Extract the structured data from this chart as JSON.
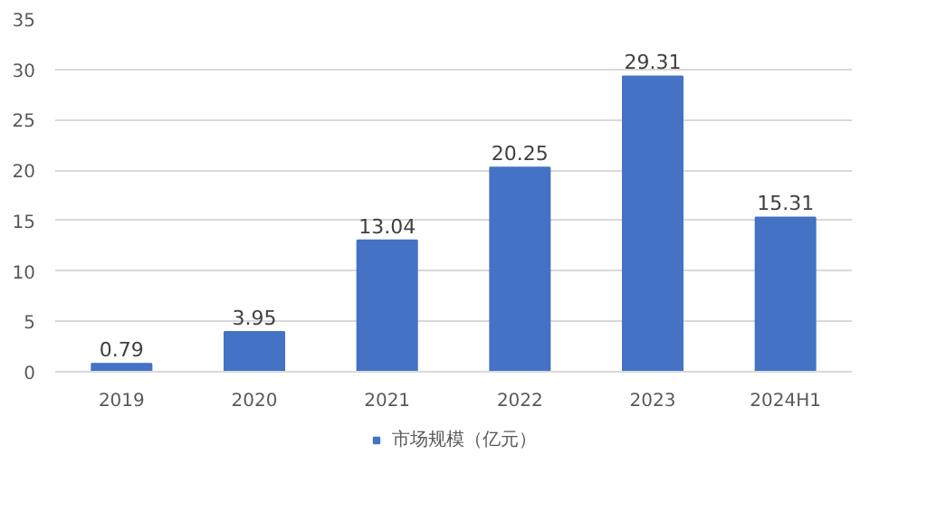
{
  "chart_data": {
    "type": "bar",
    "categories": [
      "2019",
      "2020",
      "2021",
      "2022",
      "2023",
      "2024H1"
    ],
    "series": [
      {
        "name": "市场规模（亿元）",
        "color": "#4472c4",
        "values": [
          0.79,
          3.95,
          13.04,
          20.25,
          29.31,
          15.31
        ]
      }
    ],
    "ylim": [
      0,
      35
    ],
    "yticks": [
      0,
      5,
      10,
      15,
      20,
      25,
      30,
      35
    ],
    "grid": "y",
    "legend": "bottom",
    "data_labels": true
  }
}
